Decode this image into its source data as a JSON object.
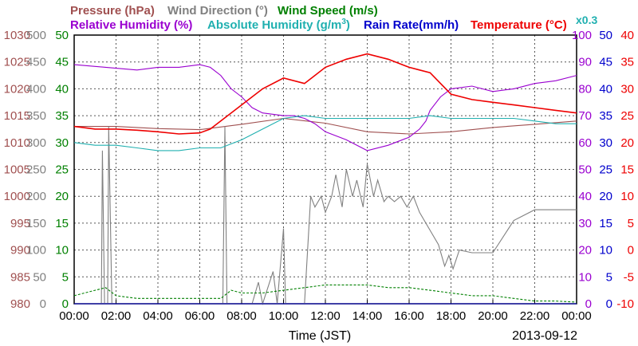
{
  "chart_data": {
    "type": "line",
    "date": "2013-09-12",
    "xlabel": "Time (JST)",
    "x_range_hours": [
      0,
      24
    ],
    "x_ticks": [
      "00:00",
      "02:00",
      "04:00",
      "06:00",
      "08:00",
      "10:00",
      "12:00",
      "14:00",
      "16:00",
      "18:00",
      "20:00",
      "22:00",
      "00:00"
    ],
    "scale_note": "x0.3",
    "axes": [
      {
        "key": "pressure",
        "color": "#a05050",
        "range": [
          980,
          1030
        ],
        "ticks": [
          "1030",
          "1025",
          "1020",
          "1015",
          "1010",
          "1005",
          "1000",
          "995",
          "990",
          "985",
          "980"
        ]
      },
      {
        "key": "wind_direction",
        "color": "#808080",
        "range": [
          0,
          500
        ],
        "ticks": [
          "500",
          "450",
          "400",
          "350",
          "300",
          "250",
          "200",
          "150",
          "100",
          "50",
          "0"
        ]
      },
      {
        "key": "wind_speed",
        "color": "#008000",
        "range": [
          0,
          50
        ],
        "ticks": [
          "50",
          "45",
          "40",
          "35",
          "30",
          "25",
          "20",
          "15",
          "10",
          "5",
          "0"
        ]
      },
      {
        "key": "humidity",
        "color": "#9a00d0",
        "range": [
          0,
          100
        ],
        "ticks": [
          "100",
          "90",
          "80",
          "70",
          "60",
          "50",
          "40",
          "30",
          "20",
          "10",
          "0"
        ]
      },
      {
        "key": "rain_rate",
        "color": "#0000cc",
        "range": [
          0,
          50
        ],
        "ticks": [
          "50",
          "45",
          "40",
          "35",
          "30",
          "25",
          "20",
          "15",
          "10",
          "5",
          "0"
        ]
      },
      {
        "key": "temperature",
        "color": "#ee0000",
        "range": [
          -10,
          40
        ],
        "ticks": [
          "40",
          "35",
          "30",
          "25",
          "20",
          "15",
          "10",
          "5",
          "0",
          "-5",
          "-10"
        ]
      }
    ],
    "series": [
      {
        "name": "Pressure (hPa)",
        "color": "#a05050",
        "axis": "pressure",
        "points": [
          [
            0,
            1013.0
          ],
          [
            2,
            1013.0
          ],
          [
            4,
            1012.6
          ],
          [
            6,
            1012.4
          ],
          [
            8,
            1013.4
          ],
          [
            10,
            1014.5
          ],
          [
            12,
            1013.6
          ],
          [
            14,
            1012.0
          ],
          [
            16,
            1011.6
          ],
          [
            18,
            1012.0
          ],
          [
            20,
            1012.8
          ],
          [
            22,
            1013.4
          ],
          [
            24,
            1014.0
          ]
        ]
      },
      {
        "name": "Wind Direction (°)",
        "color": "#808080",
        "axis": "wind_direction",
        "points": [
          [
            0,
            0
          ],
          [
            1.3,
            0
          ],
          [
            1.35,
            285
          ],
          [
            1.45,
            0
          ],
          [
            1.6,
            0
          ],
          [
            1.65,
            330
          ],
          [
            1.8,
            0
          ],
          [
            7.1,
            0
          ],
          [
            7.2,
            330
          ],
          [
            7.3,
            0
          ],
          [
            8.5,
            0
          ],
          [
            8.8,
            40
          ],
          [
            9.0,
            0
          ],
          [
            9.5,
            60
          ],
          [
            9.7,
            0
          ],
          [
            10.0,
            140
          ],
          [
            10.1,
            0
          ],
          [
            11.0,
            0
          ],
          [
            11.3,
            200
          ],
          [
            11.5,
            180
          ],
          [
            11.8,
            200
          ],
          [
            12.0,
            170
          ],
          [
            12.3,
            200
          ],
          [
            12.5,
            240
          ],
          [
            12.8,
            180
          ],
          [
            13.0,
            250
          ],
          [
            13.3,
            200
          ],
          [
            13.5,
            230
          ],
          [
            13.8,
            180
          ],
          [
            14.0,
            260
          ],
          [
            14.3,
            200
          ],
          [
            14.5,
            230
          ],
          [
            14.8,
            190
          ],
          [
            15.0,
            200
          ],
          [
            15.3,
            190
          ],
          [
            15.6,
            200
          ],
          [
            15.9,
            180
          ],
          [
            16.2,
            200
          ],
          [
            16.5,
            170
          ],
          [
            16.8,
            150
          ],
          [
            17.1,
            130
          ],
          [
            17.4,
            110
          ],
          [
            17.7,
            70
          ],
          [
            17.9,
            90
          ],
          [
            18.1,
            65
          ],
          [
            18.4,
            100
          ],
          [
            19.0,
            95
          ],
          [
            20.0,
            95
          ],
          [
            21.0,
            155
          ],
          [
            22.0,
            175
          ],
          [
            24.0,
            175
          ]
        ]
      },
      {
        "name": "Wind Speed (m/s)",
        "color": "#008000",
        "axis": "wind_speed",
        "points": [
          [
            0,
            1.5
          ],
          [
            1,
            2.5
          ],
          [
            1.5,
            3
          ],
          [
            2,
            1.5
          ],
          [
            3,
            1
          ],
          [
            4,
            1
          ],
          [
            5,
            1
          ],
          [
            6,
            1
          ],
          [
            7,
            1
          ],
          [
            7.5,
            2.5
          ],
          [
            8,
            2
          ],
          [
            9,
            2
          ],
          [
            10,
            2.5
          ],
          [
            11,
            3
          ],
          [
            12,
            3.5
          ],
          [
            13,
            3.5
          ],
          [
            14,
            3.5
          ],
          [
            15,
            3
          ],
          [
            16,
            3
          ],
          [
            17,
            2.5
          ],
          [
            18,
            2
          ],
          [
            19,
            1.5
          ],
          [
            20,
            1.5
          ],
          [
            21,
            1
          ],
          [
            22,
            0.5
          ],
          [
            23,
            0.5
          ],
          [
            24,
            0.3
          ]
        ]
      },
      {
        "name": "Relative Humidity (%)",
        "color": "#9a00d0",
        "axis": "humidity",
        "points": [
          [
            0,
            89
          ],
          [
            1.5,
            88
          ],
          [
            3,
            87
          ],
          [
            4,
            88
          ],
          [
            5,
            88
          ],
          [
            6,
            89
          ],
          [
            6.5,
            88
          ],
          [
            7,
            85
          ],
          [
            7.5,
            80
          ],
          [
            8,
            77
          ],
          [
            8.5,
            73
          ],
          [
            9,
            71
          ],
          [
            10,
            70
          ],
          [
            10.5,
            70
          ],
          [
            11,
            69
          ],
          [
            11.5,
            67
          ],
          [
            12,
            64
          ],
          [
            13,
            61
          ],
          [
            14,
            57
          ],
          [
            15,
            59
          ],
          [
            16,
            62
          ],
          [
            16.5,
            65
          ],
          [
            16.8,
            68
          ],
          [
            17,
            72
          ],
          [
            17.5,
            77
          ],
          [
            18,
            80
          ],
          [
            19,
            81
          ],
          [
            20,
            79
          ],
          [
            21,
            80
          ],
          [
            22,
            82
          ],
          [
            23,
            83
          ],
          [
            24,
            85
          ]
        ]
      },
      {
        "name": "Absolute Humidity (g/m³)",
        "color": "#20b0b0",
        "axis": "humidity",
        "points": [
          [
            0,
            60
          ],
          [
            1,
            59
          ],
          [
            2,
            59
          ],
          [
            3,
            58
          ],
          [
            4,
            57
          ],
          [
            5,
            57
          ],
          [
            6,
            58
          ],
          [
            7,
            58
          ],
          [
            8,
            61
          ],
          [
            9,
            65
          ],
          [
            10,
            69
          ],
          [
            11,
            70
          ],
          [
            12,
            69
          ],
          [
            13,
            69
          ],
          [
            14,
            69
          ],
          [
            15,
            69
          ],
          [
            16,
            69
          ],
          [
            17,
            70
          ],
          [
            18,
            69
          ],
          [
            19,
            69
          ],
          [
            20,
            69
          ],
          [
            21,
            69
          ],
          [
            22,
            68
          ],
          [
            23,
            67
          ],
          [
            24,
            67
          ]
        ]
      },
      {
        "name": "Rain Rate(mm/h)",
        "color": "#0000cc",
        "axis": "rain_rate",
        "points": [
          [
            0,
            0
          ],
          [
            24,
            0
          ]
        ]
      },
      {
        "name": "Temperature (°C)",
        "color": "#ee0000",
        "axis": "temperature",
        "points": [
          [
            0,
            23
          ],
          [
            1,
            22.5
          ],
          [
            2,
            22.5
          ],
          [
            3,
            22.3
          ],
          [
            4,
            22
          ],
          [
            5,
            21.6
          ],
          [
            6,
            21.8
          ],
          [
            6.5,
            22.5
          ],
          [
            7,
            24
          ],
          [
            8,
            27
          ],
          [
            9,
            30
          ],
          [
            10,
            32
          ],
          [
            11,
            31
          ],
          [
            11.5,
            32.5
          ],
          [
            12,
            34
          ],
          [
            13,
            35.5
          ],
          [
            14,
            36.5
          ],
          [
            15,
            35.5
          ],
          [
            16,
            34
          ],
          [
            16.5,
            33.5
          ],
          [
            17,
            33
          ],
          [
            17.5,
            31
          ],
          [
            18,
            29
          ],
          [
            19,
            28
          ],
          [
            20,
            27.5
          ],
          [
            21,
            27
          ],
          [
            22,
            26.5
          ],
          [
            23,
            26
          ],
          [
            24,
            25.5
          ]
        ]
      }
    ]
  },
  "legend": {
    "pressure": "Pressure (hPa)",
    "wind_direction": "Wind Direction (",
    "wind_direction_sym": "°",
    "wind_direction_end": ")",
    "wind_speed": "Wind Speed (m/s)",
    "relative_humidity": "Relative Humidity (%)",
    "absolute_humidity": "Absolute Humidity (g/m",
    "absolute_humidity_sup": "3",
    "absolute_humidity_end": ")",
    "rain_rate": "Rain Rate(mm/h)",
    "temperature": "Temperature (",
    "temperature_sym": "°C",
    "temperature_end": ")"
  }
}
